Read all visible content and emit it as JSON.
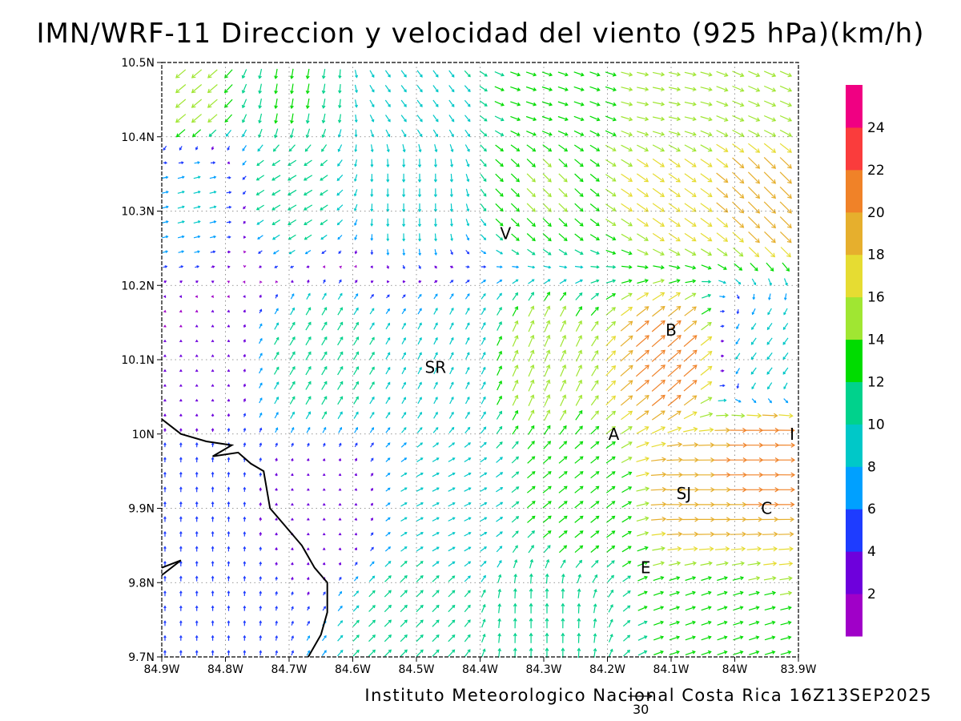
{
  "title": "IMN/WRF-11 Direccion y velocidad del viento (925 hPa)(km/h)",
  "credit": "Instituto Meteorologico Nacional Costa Rica 16Z13SEP2025",
  "reference_vector": {
    "label": "30",
    "value_kmh": 30
  },
  "chart_data": {
    "type": "vector-field",
    "title": "IMN/WRF-11 Direccion y velocidad del viento (925 hPa)(km/h)",
    "units": "km/h",
    "level": "925 hPa",
    "valid_time": "16Z13SEP2025",
    "lon_range": [
      -84.9,
      -83.9
    ],
    "lat_range": [
      9.7,
      10.5
    ],
    "x_ticks": [
      {
        "lon": -84.9,
        "label": "84.9W"
      },
      {
        "lon": -84.8,
        "label": "84.8W"
      },
      {
        "lon": -84.7,
        "label": "84.7W"
      },
      {
        "lon": -84.6,
        "label": "84.6W"
      },
      {
        "lon": -84.5,
        "label": "84.5W"
      },
      {
        "lon": -84.4,
        "label": "84.4W"
      },
      {
        "lon": -84.3,
        "label": "84.3W"
      },
      {
        "lon": -84.2,
        "label": "84.2W"
      },
      {
        "lon": -84.1,
        "label": "84.1W"
      },
      {
        "lon": -84.0,
        "label": "84W"
      },
      {
        "lon": -83.9,
        "label": "83.9W"
      }
    ],
    "y_ticks": [
      {
        "lat": 9.7,
        "label": "9.7N"
      },
      {
        "lat": 9.8,
        "label": "9.8N"
      },
      {
        "lat": 9.9,
        "label": "9.9N"
      },
      {
        "lat": 10.0,
        "label": "10N"
      },
      {
        "lat": 10.1,
        "label": "10.1N"
      },
      {
        "lat": 10.2,
        "label": "10.2N"
      },
      {
        "lat": 10.3,
        "label": "10.3N"
      },
      {
        "lat": 10.4,
        "label": "10.4N"
      },
      {
        "lat": 10.5,
        "label": "10.5N"
      }
    ],
    "grid": "dotted",
    "places": [
      {
        "label": "V",
        "lon": -84.36,
        "lat": 10.27
      },
      {
        "label": "SR",
        "lon": -84.47,
        "lat": 10.09
      },
      {
        "label": "B",
        "lon": -84.1,
        "lat": 10.14
      },
      {
        "label": "A",
        "lon": -84.19,
        "lat": 10.0
      },
      {
        "label": "I",
        "lon": -83.91,
        "lat": 10.0
      },
      {
        "label": "SJ",
        "lon": -84.08,
        "lat": 9.92
      },
      {
        "label": "C",
        "lon": -83.95,
        "lat": 9.9
      },
      {
        "label": "E",
        "lon": -84.14,
        "lat": 9.82
      }
    ],
    "coastline": [
      [
        -84.9,
        10.02
      ],
      [
        -84.87,
        10.0
      ],
      [
        -84.83,
        9.99
      ],
      [
        -84.79,
        9.985
      ],
      [
        -84.82,
        9.97
      ],
      [
        -84.78,
        9.975
      ],
      [
        -84.76,
        9.96
      ],
      [
        -84.74,
        9.95
      ],
      [
        -84.73,
        9.9
      ],
      [
        -84.71,
        9.88
      ],
      [
        -84.68,
        9.85
      ],
      [
        -84.66,
        9.82
      ],
      [
        -84.64,
        9.8
      ],
      [
        -84.64,
        9.76
      ],
      [
        -84.65,
        9.73
      ],
      [
        -84.67,
        9.7
      ]
    ],
    "coastline_inlet": [
      [
        -84.9,
        9.82
      ],
      [
        -84.87,
        9.83
      ],
      [
        -84.9,
        9.81
      ]
    ],
    "colorbar": {
      "labels": [
        "2",
        "4",
        "6",
        "8",
        "10",
        "12",
        "14",
        "16",
        "18",
        "20",
        "22",
        "24"
      ],
      "colors": [
        "#a000c8",
        "#6e00dc",
        "#1e3cff",
        "#00a0ff",
        "#00c8c8",
        "#00d28c",
        "#00dc00",
        "#a0e632",
        "#e6dc32",
        "#e6af2d",
        "#f08228",
        "#fa3c3c",
        "#f00082"
      ]
    },
    "wind_field": {
      "description": "Sampled wind vectors from the figure: lon (deg E), lat (deg N), u/v components (km/h, v positive north)",
      "points": [
        {
          "lon": -84.86,
          "lat": 10.45,
          "u": -12,
          "v": -10
        },
        {
          "lon": -84.7,
          "lat": 10.45,
          "u": -2,
          "v": -12
        },
        {
          "lon": -84.5,
          "lat": 10.45,
          "u": 6,
          "v": -8
        },
        {
          "lon": -84.3,
          "lat": 10.45,
          "u": 12,
          "v": -4
        },
        {
          "lon": -84.1,
          "lat": 10.45,
          "u": 14,
          "v": -3
        },
        {
          "lon": -83.95,
          "lat": 10.45,
          "u": 14,
          "v": -6
        },
        {
          "lon": -84.85,
          "lat": 10.32,
          "u": 8,
          "v": 2
        },
        {
          "lon": -84.7,
          "lat": 10.33,
          "u": -10,
          "v": -6
        },
        {
          "lon": -84.5,
          "lat": 10.33,
          "u": 0,
          "v": -10
        },
        {
          "lon": -84.3,
          "lat": 10.33,
          "u": 10,
          "v": -10
        },
        {
          "lon": -84.1,
          "lat": 10.33,
          "u": 14,
          "v": -10
        },
        {
          "lon": -83.95,
          "lat": 10.33,
          "u": 14,
          "v": -14
        },
        {
          "lon": -84.85,
          "lat": 10.1,
          "u": 0,
          "v": 2
        },
        {
          "lon": -84.65,
          "lat": 10.1,
          "u": 6,
          "v": 10
        },
        {
          "lon": -84.45,
          "lat": 10.1,
          "u": 4,
          "v": 8
        },
        {
          "lon": -84.3,
          "lat": 10.1,
          "u": 6,
          "v": 14
        },
        {
          "lon": -84.1,
          "lat": 10.1,
          "u": 16,
          "v": 14
        },
        {
          "lon": -83.95,
          "lat": 10.1,
          "u": -6,
          "v": -8
        },
        {
          "lon": -84.85,
          "lat": 9.9,
          "u": 0,
          "v": 6
        },
        {
          "lon": -84.65,
          "lat": 9.9,
          "u": 0,
          "v": 2
        },
        {
          "lon": -84.45,
          "lat": 9.9,
          "u": 8,
          "v": 4
        },
        {
          "lon": -84.25,
          "lat": 9.9,
          "u": 10,
          "v": 8
        },
        {
          "lon": -84.05,
          "lat": 9.92,
          "u": 20,
          "v": 0
        },
        {
          "lon": -83.95,
          "lat": 9.98,
          "u": 22,
          "v": 0
        },
        {
          "lon": -84.85,
          "lat": 9.75,
          "u": 0,
          "v": 6
        },
        {
          "lon": -84.5,
          "lat": 9.75,
          "u": 8,
          "v": 8
        },
        {
          "lon": -84.3,
          "lat": 9.75,
          "u": 0,
          "v": 12
        },
        {
          "lon": -84.05,
          "lat": 9.75,
          "u": 12,
          "v": 4
        }
      ]
    }
  }
}
